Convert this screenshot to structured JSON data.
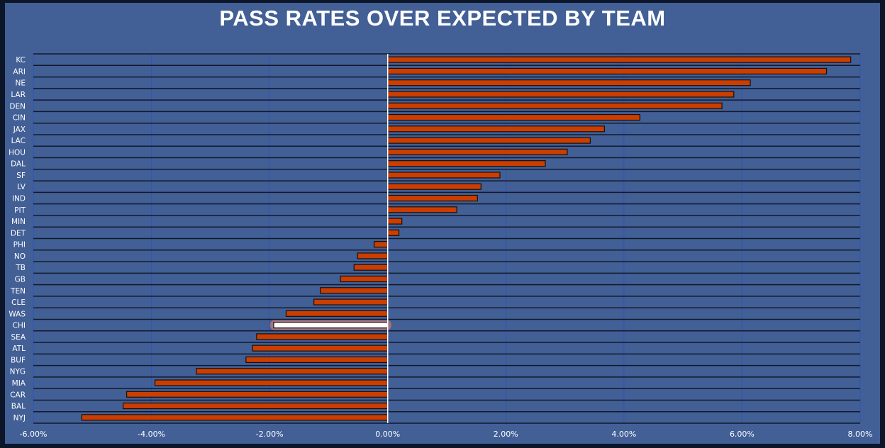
{
  "chart_data": {
    "type": "bar",
    "orientation": "horizontal",
    "title": "PASS RATES OVER EXPECTED BY TEAM",
    "xlabel": "",
    "ylabel": "",
    "xlim": [
      -6,
      8
    ],
    "xticks": [
      -6,
      -4,
      -2,
      0,
      2,
      4,
      6,
      8
    ],
    "xtick_labels": [
      "-6.00%",
      "-4.00%",
      "-2.00%",
      "0.00%",
      "2.00%",
      "4.00%",
      "6.00%",
      "8.00%"
    ],
    "categories": [
      "KC",
      "ARI",
      "NE",
      "LAR",
      "DEN",
      "CIN",
      "JAX",
      "LAC",
      "HOU",
      "DAL",
      "SF",
      "LV",
      "IND",
      "PIT",
      "MIN",
      "DET",
      "PHI",
      "NO",
      "TB",
      "GB",
      "TEN",
      "CLE",
      "WAS",
      "CHI",
      "SEA",
      "ATL",
      "BUF",
      "NYG",
      "MIA",
      "CAR",
      "BAL",
      "NYJ"
    ],
    "values": [
      7.84,
      7.43,
      6.14,
      5.86,
      5.66,
      4.27,
      3.67,
      3.43,
      3.04,
      2.67,
      1.9,
      1.58,
      1.52,
      1.17,
      0.24,
      0.19,
      -0.23,
      -0.51,
      -0.57,
      -0.8,
      -1.14,
      -1.25,
      -1.72,
      -1.93,
      -2.22,
      -2.29,
      -2.4,
      -3.24,
      -3.94,
      -4.42,
      -4.48,
      -5.18
    ],
    "highlight": "CHI",
    "colors": {
      "bar": "#cc3d00",
      "highlight": "#ffffff",
      "background": "#425f96",
      "frame": "#0c1628"
    }
  }
}
